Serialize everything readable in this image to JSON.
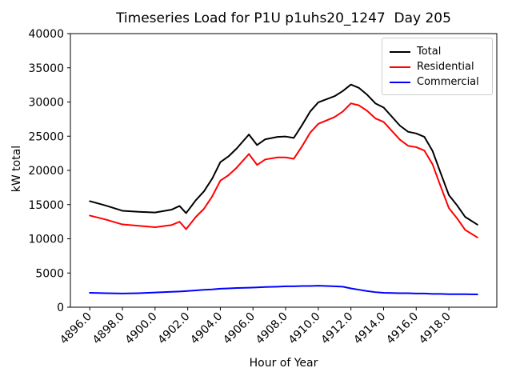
{
  "chart_data": {
    "type": "line",
    "title": "Timeseries Load for P1U p1uhs20_1247  Day 205",
    "xlabel": "Hour of Year",
    "ylabel": "kW total",
    "xlim": [
      4894.8125,
      4920.9375
    ],
    "ylim": [
      0,
      40000
    ],
    "xticks": [
      4896.0,
      4898.0,
      4900.0,
      4902.0,
      4904.0,
      4906.0,
      4908.0,
      4910.0,
      4912.0,
      4914.0,
      4916.0,
      4918.0
    ],
    "yticks": [
      0,
      5000,
      10000,
      15000,
      20000,
      25000,
      30000,
      35000,
      40000
    ],
    "grid": false,
    "legend_position": "upper right",
    "x": [
      4896.0,
      4897.0,
      4898.0,
      4899.0,
      4900.0,
      4901.0,
      4901.5,
      4901.9,
      4902.5,
      4903.0,
      4903.5,
      4904.0,
      4904.5,
      4905.0,
      4905.75,
      4906.25,
      4906.75,
      4907.5,
      4908.0,
      4908.5,
      4909.0,
      4909.5,
      4910.0,
      4910.5,
      4911.0,
      4911.5,
      4912.0,
      4912.5,
      4913.0,
      4913.5,
      4914.0,
      4915.0,
      4915.5,
      4916.0,
      4916.5,
      4917.0,
      4917.5,
      4918.0,
      4918.5,
      4919.0,
      4919.75
    ],
    "series": [
      {
        "name": "Total",
        "color": "#000000",
        "values": [
          15500,
          14850,
          14100,
          13950,
          13850,
          14250,
          14800,
          13750,
          15650,
          16950,
          18800,
          21200,
          22050,
          23200,
          25250,
          23700,
          24550,
          24900,
          24950,
          24750,
          26600,
          28600,
          29950,
          30400,
          30850,
          31600,
          32550,
          32050,
          31050,
          29800,
          29200,
          26550,
          25650,
          25400,
          24900,
          22850,
          19600,
          16400,
          14900,
          13200,
          12070
        ]
      },
      {
        "name": "Residential",
        "color": "#ff0000",
        "values": [
          13400,
          12800,
          12100,
          11900,
          11700,
          12000,
          12500,
          11400,
          13200,
          14400,
          16200,
          18500,
          19300,
          20400,
          22400,
          20800,
          21600,
          21900,
          21900,
          21700,
          23500,
          25500,
          26800,
          27300,
          27800,
          28600,
          29800,
          29500,
          28700,
          27600,
          27100,
          24500,
          23600,
          23400,
          22900,
          20900,
          17650,
          14500,
          13000,
          11300,
          10200
        ]
      },
      {
        "name": "Commercial",
        "color": "#0000ff",
        "values": [
          2100,
          2050,
          2000,
          2050,
          2150,
          2250,
          2300,
          2350,
          2450,
          2550,
          2600,
          2700,
          2750,
          2800,
          2850,
          2900,
          2950,
          3000,
          3050,
          3050,
          3100,
          3100,
          3150,
          3100,
          3050,
          3000,
          2750,
          2550,
          2350,
          2200,
          2100,
          2050,
          2050,
          2000,
          2000,
          1950,
          1950,
          1900,
          1900,
          1900,
          1870
        ]
      }
    ]
  }
}
